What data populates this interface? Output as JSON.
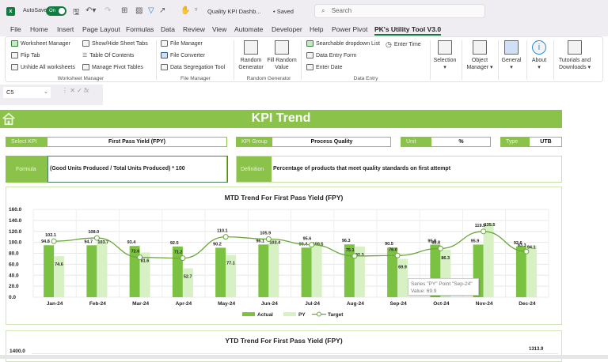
{
  "titlebar": {
    "autosave_label": "AutoSave",
    "autosave_state": "On",
    "doc_title": "Quality KPI Dashb...",
    "save_status": "• Saved",
    "search_placeholder": "Search"
  },
  "menu": {
    "items": [
      "File",
      "Home",
      "Insert",
      "Page Layout",
      "Formulas",
      "Data",
      "Review",
      "View",
      "Automate",
      "Developer",
      "Help",
      "Power Pivot",
      "PK's Utility Tool V3.0"
    ],
    "active": "PK's Utility Tool V3.0"
  },
  "ribbon": {
    "worksheet_manager": {
      "label": "Worksheet Manager",
      "items": [
        "Worksheet Manager",
        "Flip Tab",
        "Unhide All worksheets",
        "Show/Hide Sheet Tabs",
        "Table Of Contents",
        "Manage Pivot Tables"
      ]
    },
    "file_manager": {
      "label": "File Manager",
      "items": [
        "File Manager",
        "File Converter",
        "Data Segregation Tool"
      ]
    },
    "random_generator": {
      "label": "Random Generator",
      "items": [
        "Random Generator",
        "Fill Random Value"
      ]
    },
    "data_entry": {
      "label": "Data Entry",
      "items": [
        "Searchable dropdown List",
        "Data Entry Form",
        "Enter Date",
        "Enter Time"
      ]
    },
    "right_buttons": [
      "Selection",
      "Object Manager",
      "General",
      "About",
      "Tutorials and Downloads"
    ]
  },
  "formula_bar": {
    "name_box": "C5",
    "fx": "fx",
    "value": ""
  },
  "dashboard": {
    "title": "KPI Trend",
    "select_kpi_label": "Select KPI",
    "select_kpi_value": "First Pass Yield (FPY)",
    "kpi_group_label": "KPI Group",
    "kpi_group_value": "Process Quality",
    "unit_label": "Unit",
    "unit_value": "%",
    "type_label": "Type",
    "type_value": "UTB",
    "formula_label": "Formula",
    "formula_value": "(Good Units Produced / Total Units Produced) * 100",
    "definition_label": "Definition",
    "definition_value": "Percentage of products that meet quality standards on first attempt"
  },
  "tooltip": {
    "line1": "Series \"PY\" Point \"Sep-24\"",
    "line2": "Value: 69.9"
  },
  "colors": {
    "accent": "#8bc34a",
    "actual": "#7cc242",
    "py": "#d7f0c4",
    "target": "#6aa63a",
    "excel_green": "#107c41"
  },
  "chart_data": [
    {
      "type": "bar",
      "title": "MTD Trend For First Pass Yield (FPY)",
      "categories": [
        "Jan-24",
        "Feb-24",
        "Mar-24",
        "Apr-24",
        "May-24",
        "Jun-24",
        "Jul-24",
        "Aug-24",
        "Sep-24",
        "Oct-24",
        "Nov-24",
        "Dec-24"
      ],
      "series": [
        {
          "name": "Actual",
          "type": "bar",
          "values": [
            94.8,
            94.7,
            93.4,
            92.5,
            90.2,
            96.1,
            90.4,
            96.3,
            90.5,
            95.8,
            95.9,
            92.6
          ]
        },
        {
          "name": "PY",
          "type": "bar",
          "values": [
            74.6,
            103.7,
            81.6,
            52.7,
            77.1,
            103.4,
            100.5,
            92.3,
            69.9,
            86.3,
            135.5,
            94.1
          ]
        },
        {
          "name": "Target",
          "type": "line",
          "values": [
            102.1,
            108.0,
            72.6,
            71.2,
            110.1,
            105.9,
            95.6,
            75.1,
            76.0,
            88.8,
            119.9,
            83.3
          ]
        }
      ],
      "xlabel": "",
      "ylabel": "",
      "ylim": [
        0,
        160
      ],
      "yticks": [
        "0.0",
        "20.0",
        "40.0",
        "60.0",
        "80.0",
        "100.0",
        "120.0",
        "140.0",
        "160.0"
      ],
      "grid": true,
      "legend_position": "bottom"
    },
    {
      "type": "bar",
      "title": "YTD Trend For First Pass Yield (FPY)",
      "yticks_visible": [
        "1400.0"
      ],
      "visible_labels": [
        "1313.9"
      ]
    }
  ]
}
